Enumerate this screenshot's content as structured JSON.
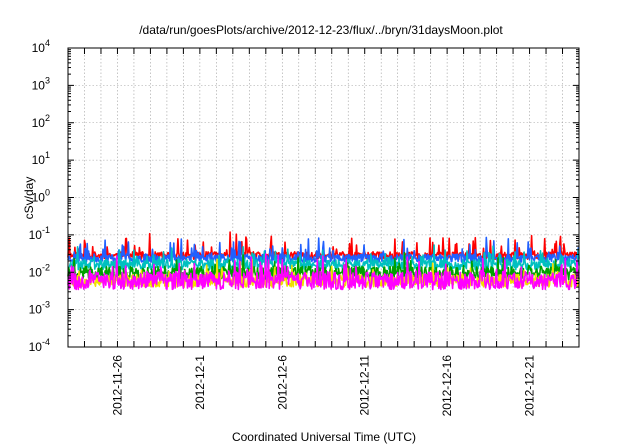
{
  "chart_data": {
    "type": "line",
    "title": "/data/run/goesPlots/archive/2012-12-23/flux/../bryn/31daysMoon.plot",
    "xlabel": "Coordinated Universal Time (UTC)",
    "ylabel": "cSv/day",
    "yscale": "log",
    "ylim": [
      0.0001,
      10000
    ],
    "xlim": [
      "2012-11-23T00:00",
      "2012-12-24T00:00"
    ],
    "grid": true,
    "legend": "none",
    "y_ticks": [
      {
        "base": "10",
        "exp": "-4"
      },
      {
        "base": "10",
        "exp": "-3"
      },
      {
        "base": "10",
        "exp": "-2"
      },
      {
        "base": "10",
        "exp": "-1"
      },
      {
        "base": "10",
        "exp": "0"
      },
      {
        "base": "10",
        "exp": "1"
      },
      {
        "base": "10",
        "exp": "2"
      },
      {
        "base": "10",
        "exp": "3"
      },
      {
        "base": "10",
        "exp": "4"
      }
    ],
    "x_ticks": [
      "2012-11-26",
      "2012-12-1",
      "2012-12-6",
      "2012-12-11",
      "2012-12-16",
      "2012-12-21"
    ],
    "series": [
      {
        "color": "#ff0000",
        "level": 0.028,
        "spread": 0.1,
        "spike_prob": 0.1,
        "spike_max": 0.55,
        "seed": 11
      },
      {
        "color": "#2060ff",
        "level": 0.024,
        "spread": 0.11,
        "spike_prob": 0.1,
        "spike_max": 0.5,
        "seed": 23
      },
      {
        "color": "#00c0c0",
        "level": 0.016,
        "spread": 0.14,
        "spike_prob": 0.09,
        "spike_max": 0.45,
        "seed": 37
      },
      {
        "color": "#00a000",
        "level": 0.0095,
        "spread": 0.18,
        "spike_prob": 0.08,
        "spike_max": 0.4,
        "seed": 41
      },
      {
        "color": "#f0e000",
        "level": 0.006,
        "spread": 0.18,
        "spike_prob": 0.08,
        "spike_max": 0.45,
        "seed": 53
      },
      {
        "color": "#ff00ff",
        "level": 0.006,
        "spread": 0.24,
        "spike_prob": 0.1,
        "spike_max": 0.5,
        "seed": 67
      }
    ]
  }
}
